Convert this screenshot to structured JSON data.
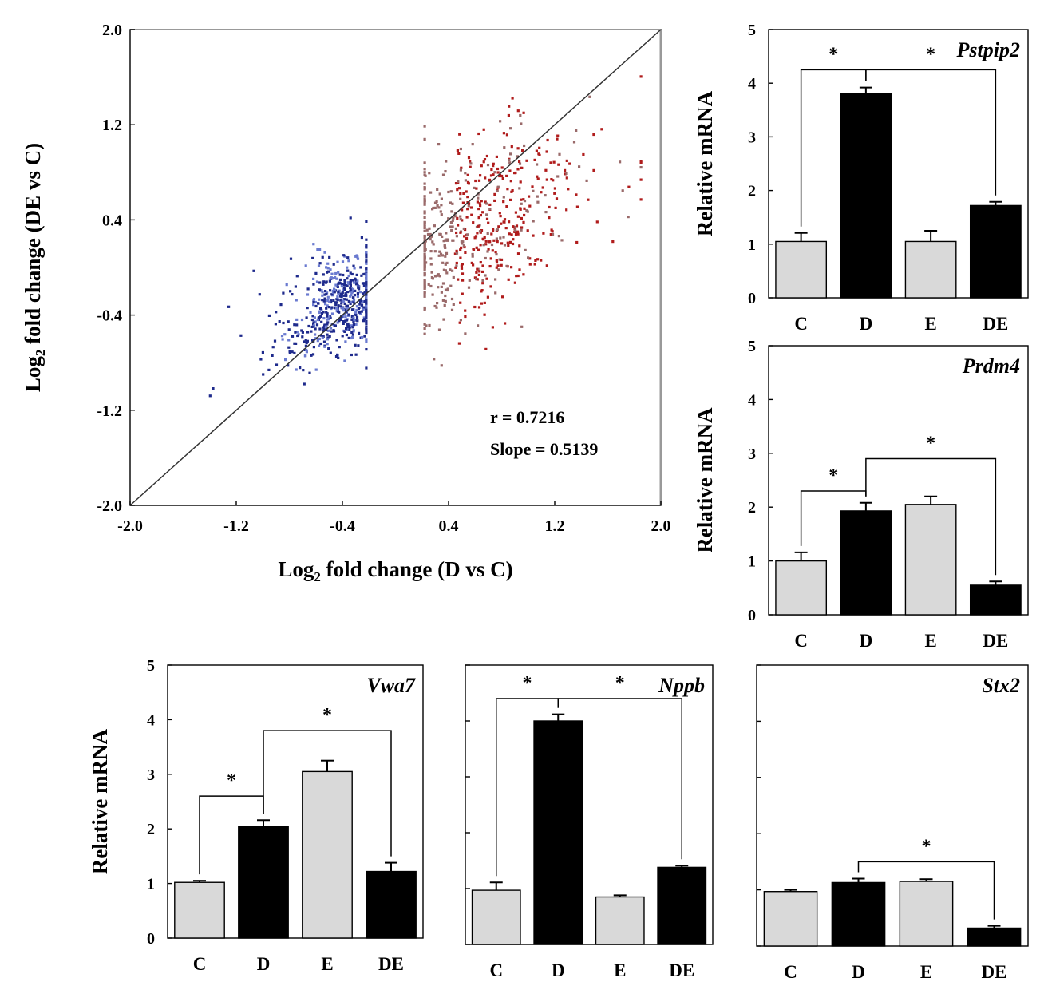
{
  "colors": {
    "down": "#1e2a8c",
    "down_light": "#6a7ad0",
    "up": "#b01c1c",
    "up_light": "#9a6a6a",
    "bar_light": "#d9d9d9",
    "bar_dark": "#000000"
  },
  "chart_data": [
    {
      "type": "scatter",
      "title": "",
      "xlabel_main": "Log",
      "xlabel_sub": "2",
      "xlabel_rest": " fold change (D vs C)",
      "ylabel_main": "Log",
      "ylabel_sub": "2",
      "ylabel_rest": " fold change (DE vs C)",
      "xlim": [
        -2.0,
        2.0
      ],
      "ylim": [
        -2.0,
        2.0
      ],
      "x_ticks": [
        "-2.0",
        "-1.2",
        "-0.4",
        "0.4",
        "1.2",
        "2.0"
      ],
      "y_ticks": [
        "-2.0",
        "-1.2",
        "-0.4",
        "0.4",
        "1.2",
        "2.0"
      ],
      "diagonal": true,
      "annotations": [
        "r = 0.7216",
        "Slope = 0.5139"
      ],
      "clusters": [
        {
          "group": "down",
          "count": 620,
          "x_mean": -0.4,
          "x_sd": 0.18,
          "y_mean": -0.3,
          "y_sd": 0.2,
          "x_min": -1.8,
          "x_max": -0.22
        },
        {
          "group": "up",
          "count": 620,
          "x_mean": 0.6,
          "x_sd": 0.32,
          "y_mean": 0.35,
          "y_sd": 0.35,
          "x_min": 0.22,
          "x_max": 1.85
        }
      ]
    },
    {
      "type": "bar",
      "gene": "Pstpip2",
      "ylabel": "Relative mRNA",
      "ylim": [
        0,
        5
      ],
      "y_ticks": [
        "0",
        "1",
        "2",
        "3",
        "4",
        "5"
      ],
      "categories": [
        "C",
        "D",
        "E",
        "DE"
      ],
      "values": [
        1.05,
        3.8,
        1.05,
        1.72
      ],
      "errors": [
        0.16,
        0.12,
        0.2,
        0.07
      ],
      "significance": [
        {
          "from": 0,
          "to": 1,
          "level": 4.25,
          "label": "*"
        },
        {
          "from": 1,
          "to": 3,
          "level": 4.25,
          "label": "*"
        }
      ]
    },
    {
      "type": "bar",
      "gene": "Prdm4",
      "ylabel": "Relative mRNA",
      "ylim": [
        0,
        5
      ],
      "y_ticks": [
        "0",
        "1",
        "2",
        "3",
        "4",
        "5"
      ],
      "categories": [
        "C",
        "D",
        "E",
        "DE"
      ],
      "values": [
        1.0,
        1.93,
        2.05,
        0.55
      ],
      "errors": [
        0.16,
        0.15,
        0.15,
        0.07
      ],
      "significance": [
        {
          "from": 0,
          "to": 1,
          "level": 2.3,
          "label": "*"
        },
        {
          "from": 1,
          "to": 3,
          "level": 2.9,
          "label": "*"
        }
      ]
    },
    {
      "type": "bar",
      "gene": "Vwa7",
      "ylabel": "Relative mRNA",
      "ylim": [
        0,
        5
      ],
      "y_ticks": [
        "0",
        "1",
        "2",
        "3",
        "4",
        "5"
      ],
      "categories": [
        "C",
        "D",
        "E",
        "DE"
      ],
      "values": [
        1.02,
        2.04,
        3.05,
        1.22
      ],
      "errors": [
        0.03,
        0.12,
        0.2,
        0.16
      ],
      "significance": [
        {
          "from": 0,
          "to": 1,
          "level": 2.6,
          "label": "*"
        },
        {
          "from": 1,
          "to": 3,
          "level": 3.8,
          "label": "*"
        }
      ]
    },
    {
      "type": "bar",
      "gene": "Nppb",
      "ylabel": "",
      "ylim": [
        0,
        5
      ],
      "y_ticks": [],
      "categories": [
        "C",
        "D",
        "E",
        "DE"
      ],
      "values": [
        0.97,
        4.0,
        0.85,
        1.38
      ],
      "errors": [
        0.14,
        0.12,
        0.03,
        0.03
      ],
      "significance": [
        {
          "from": 0,
          "to": 1,
          "level": 4.4,
          "label": "*"
        },
        {
          "from": 1,
          "to": 3,
          "level": 4.4,
          "label": "*"
        }
      ]
    },
    {
      "type": "bar",
      "gene": "Stx2",
      "ylabel": "",
      "ylim": [
        0,
        5
      ],
      "y_ticks": [],
      "categories": [
        "C",
        "D",
        "E",
        "DE"
      ],
      "values": [
        0.97,
        1.13,
        1.15,
        0.32
      ],
      "errors": [
        0.03,
        0.07,
        0.04,
        0.04
      ],
      "significance": [
        {
          "from": 1,
          "to": 3,
          "level": 1.5,
          "label": "*"
        }
      ]
    }
  ]
}
